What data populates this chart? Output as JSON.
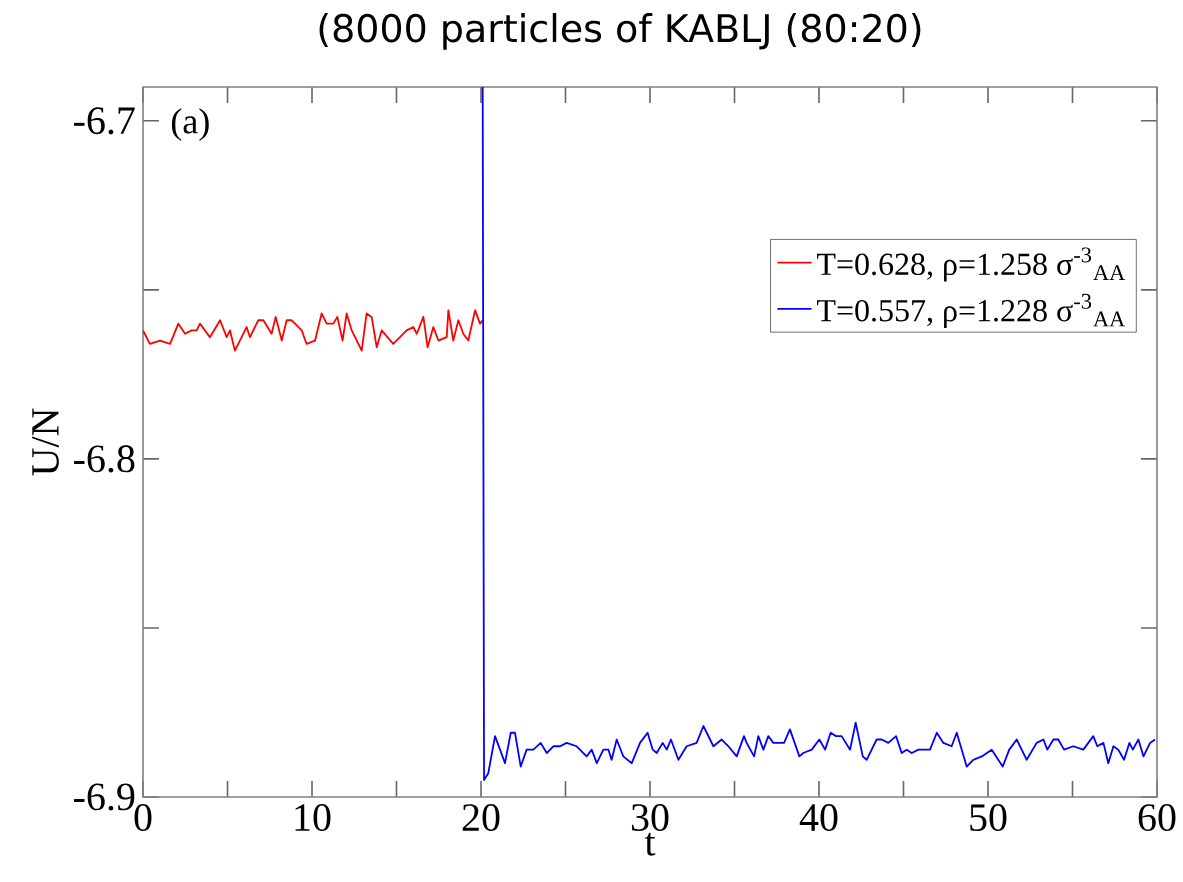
{
  "chart_data": {
    "type": "line",
    "title": "(8000 particles of KABLJ (80:20)",
    "xlabel": "t",
    "ylabel": "U/N",
    "annotations": [
      "(a)"
    ],
    "xlim": [
      0,
      60
    ],
    "ylim": [
      -6.9,
      -6.69
    ],
    "xticks": [
      0,
      {
        "value": 5,
        "label": null
      },
      10,
      {
        "value": 15,
        "label": null
      },
      20,
      {
        "value": 25,
        "label": null
      },
      30,
      {
        "value": 35,
        "label": null
      },
      40,
      {
        "value": 45,
        "label": null
      },
      50,
      {
        "value": 55,
        "label": null
      },
      60
    ],
    "yticks": [
      -6.9,
      {
        "value": -6.85,
        "label": null
      },
      -6.8,
      {
        "value": -6.75,
        "label": null
      },
      -6.7
    ],
    "legend": "right",
    "grid": false,
    "marker": "none",
    "line_style": "solid",
    "series": [
      {
        "name": "T=0.628, ρ=1.258 σ$^{-3}$$_{AA}$",
        "color": "#ff0000",
        "x": [
          0.0,
          0.41,
          1.01,
          1.6,
          2.09,
          2.49,
          2.88,
          3.18,
          3.37,
          3.96,
          4.56,
          4.95,
          5.15,
          5.44,
          6.13,
          6.33,
          6.82,
          7.12,
          7.61,
          7.85,
          8.21,
          8.5,
          8.8,
          9.39,
          9.68,
          10.18,
          10.57,
          10.87,
          11.26,
          11.5,
          11.81,
          12.05,
          12.35,
          12.94,
          13.23,
          13.53,
          13.83,
          14.12,
          14.81,
          15.6,
          16.0,
          16.2,
          16.59,
          16.84,
          17.18,
          17.48,
          17.97,
          18.07,
          18.36,
          18.66,
          18.95,
          19.25,
          19.65,
          19.94,
          20.1
        ],
        "values": [
          -6.762,
          -6.766,
          -6.765,
          -6.766,
          -6.76,
          -6.763,
          -6.762,
          -6.762,
          -6.76,
          -6.764,
          -6.759,
          -6.764,
          -6.762,
          -6.768,
          -6.761,
          -6.764,
          -6.759,
          -6.759,
          -6.763,
          -6.758,
          -6.765,
          -6.759,
          -6.759,
          -6.762,
          -6.766,
          -6.765,
          -6.757,
          -6.76,
          -6.76,
          -6.758,
          -6.765,
          -6.757,
          -6.762,
          -6.768,
          -6.757,
          -6.758,
          -6.767,
          -6.762,
          -6.766,
          -6.762,
          -6.761,
          -6.763,
          -6.758,
          -6.767,
          -6.761,
          -6.765,
          -6.764,
          -6.756,
          -6.765,
          -6.759,
          -6.763,
          -6.765,
          -6.756,
          -6.76,
          -6.759
        ]
      },
      {
        "name": "T=0.557, ρ=1.228 σ$^{-3}$$_{AA}$",
        "color": "#0000ff",
        "x": [
          20.1,
          20.18,
          20.43,
          20.83,
          21.42,
          21.76,
          22.01,
          22.35,
          22.7,
          23.1,
          23.53,
          23.89,
          24.28,
          24.68,
          25.07,
          25.66,
          26.25,
          26.55,
          26.85,
          27.24,
          27.54,
          27.73,
          28.03,
          28.42,
          28.92,
          29.41,
          29.86,
          30.16,
          30.4,
          30.75,
          30.99,
          31.24,
          31.68,
          32.17,
          32.76,
          33.16,
          33.75,
          34.24,
          34.64,
          35.13,
          35.56,
          35.72,
          36.16,
          36.41,
          36.71,
          37.0,
          37.3,
          37.69,
          37.93,
          38.28,
          38.84,
          39.07,
          39.57,
          40.02,
          40.36,
          40.69,
          41.01,
          41.34,
          41.84,
          42.17,
          42.59,
          42.82,
          43.41,
          43.71,
          44.1,
          44.56,
          44.89,
          45.19,
          45.49,
          45.88,
          46.57,
          46.97,
          47.36,
          47.85,
          48.15,
          48.74,
          49.13,
          49.63,
          50.22,
          50.87,
          51.26,
          51.7,
          52.29,
          52.88,
          53.28,
          53.51,
          53.87,
          54.16,
          54.5,
          55.05,
          55.64,
          56.23,
          56.47,
          56.83,
          57.12,
          57.42,
          57.71,
          58.05,
          58.37,
          58.57,
          58.9,
          59.2,
          59.59,
          59.88
        ],
        "values": [
          -6.69,
          -6.895,
          -6.893,
          -6.882,
          -6.89,
          -6.881,
          -6.881,
          -6.891,
          -6.886,
          -6.886,
          -6.884,
          -6.887,
          -6.885,
          -6.885,
          -6.884,
          -6.885,
          -6.888,
          -6.886,
          -6.89,
          -6.886,
          -6.886,
          -6.889,
          -6.883,
          -6.888,
          -6.89,
          -6.884,
          -6.881,
          -6.886,
          -6.887,
          -6.884,
          -6.886,
          -6.883,
          -6.889,
          -6.885,
          -6.884,
          -6.879,
          -6.885,
          -6.883,
          -6.885,
          -6.888,
          -6.882,
          -6.884,
          -6.888,
          -6.882,
          -6.886,
          -6.882,
          -6.884,
          -6.884,
          -6.884,
          -6.88,
          -6.888,
          -6.887,
          -6.886,
          -6.883,
          -6.886,
          -6.881,
          -6.882,
          -6.882,
          -6.886,
          -6.878,
          -6.888,
          -6.889,
          -6.883,
          -6.883,
          -6.884,
          -6.882,
          -6.887,
          -6.886,
          -6.887,
          -6.886,
          -6.886,
          -6.881,
          -6.884,
          -6.885,
          -6.881,
          -6.891,
          -6.889,
          -6.888,
          -6.886,
          -6.891,
          -6.886,
          -6.883,
          -6.889,
          -6.884,
          -6.883,
          -6.886,
          -6.883,
          -6.883,
          -6.886,
          -6.885,
          -6.886,
          -6.882,
          -6.885,
          -6.884,
          -6.89,
          -6.885,
          -6.886,
          -6.889,
          -6.884,
          -6.886,
          -6.883,
          -6.888,
          -6.884,
          -6.883
        ]
      }
    ]
  }
}
